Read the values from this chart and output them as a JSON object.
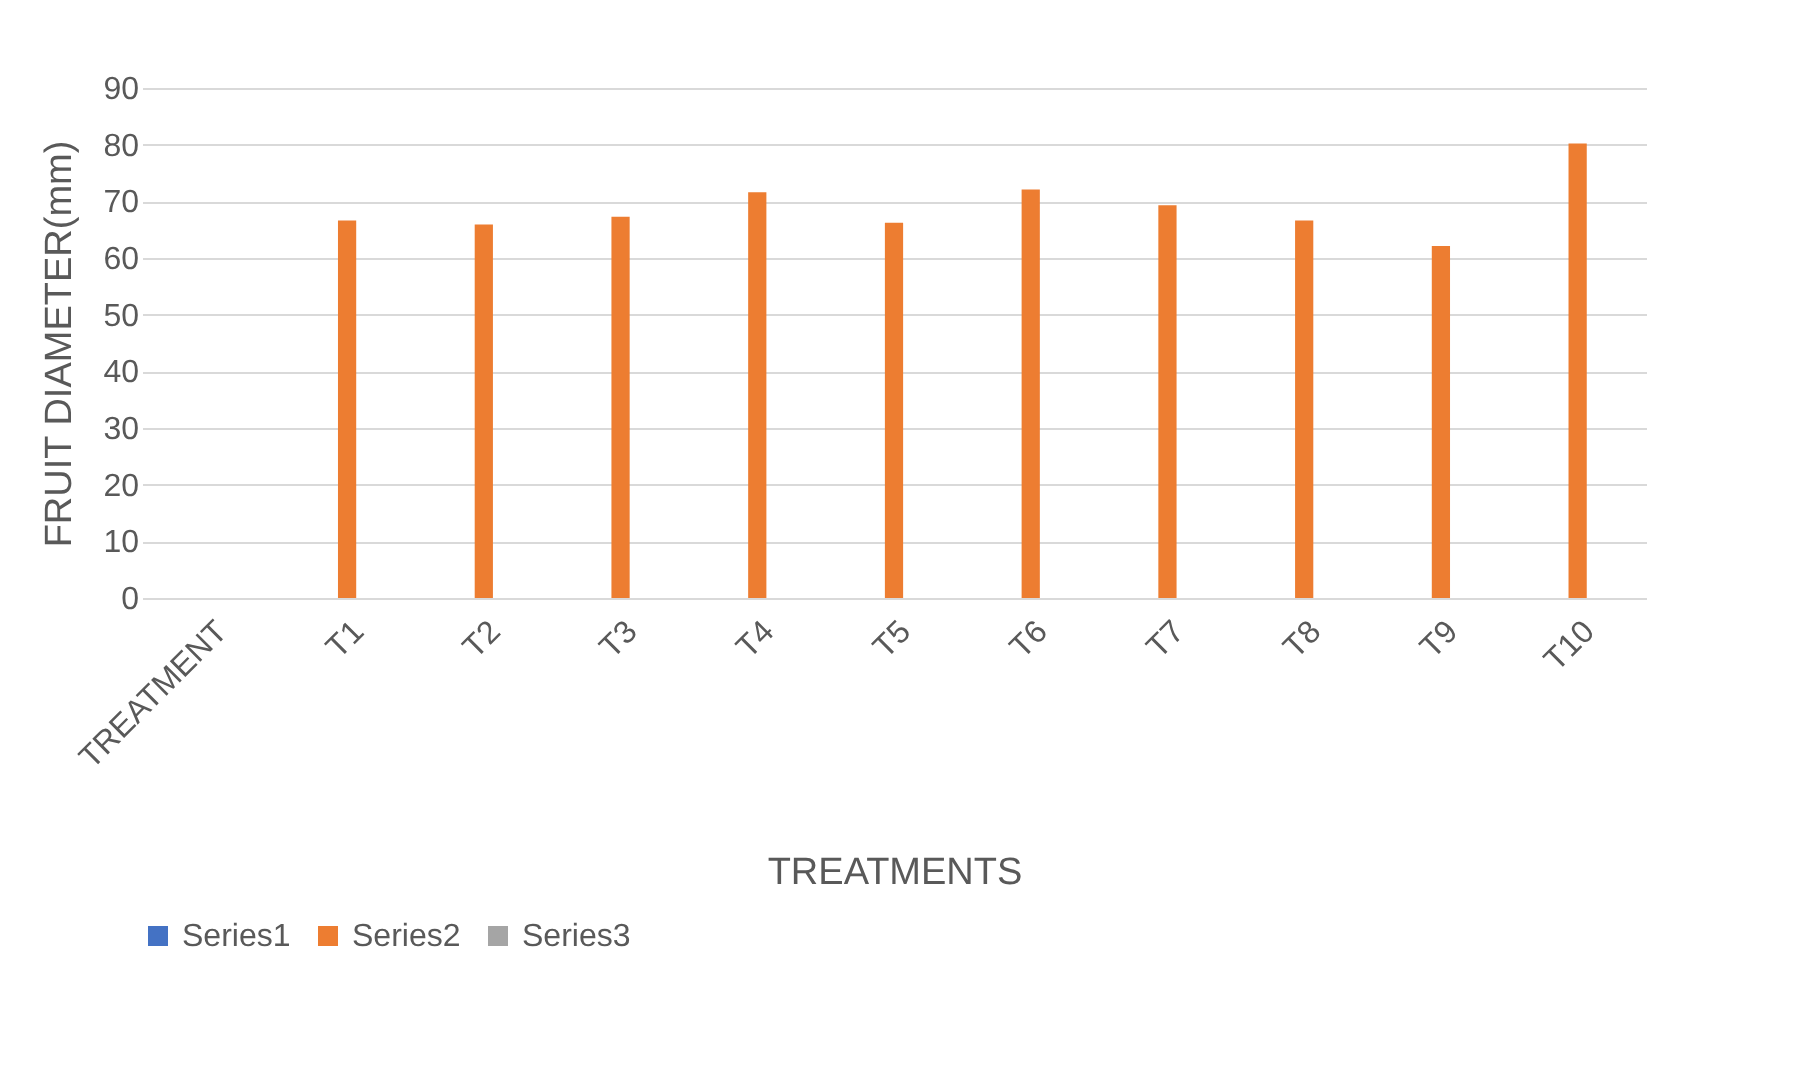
{
  "chart_data": {
    "type": "bar",
    "xlabel": "TREATMENTS",
    "ylabel": "FRUIT DIAMETER(mm)",
    "categories": [
      "TREATMENT",
      "T1",
      "T2",
      "T3",
      "T4",
      "T5",
      "T6",
      "T7",
      "T8",
      "T9",
      "T10"
    ],
    "series": [
      {
        "name": "Series1",
        "color": "#4472c4",
        "values": [
          null,
          null,
          null,
          null,
          null,
          null,
          null,
          null,
          null,
          null,
          null
        ]
      },
      {
        "name": "Series2",
        "color": "#ed7d31",
        "values": [
          null,
          66.6,
          65.9,
          67.3,
          71.6,
          66.2,
          72.1,
          69.3,
          66.6,
          62.1,
          80.2
        ]
      },
      {
        "name": "Series3",
        "color": "#a5a5a5",
        "values": [
          null,
          null,
          null,
          null,
          null,
          null,
          null,
          null,
          null,
          null,
          null
        ]
      }
    ],
    "ylim": [
      0,
      90
    ],
    "yticks": [
      0,
      10,
      20,
      30,
      40,
      50,
      60,
      70,
      80,
      90
    ],
    "grid": "y",
    "legend": "bottom"
  }
}
